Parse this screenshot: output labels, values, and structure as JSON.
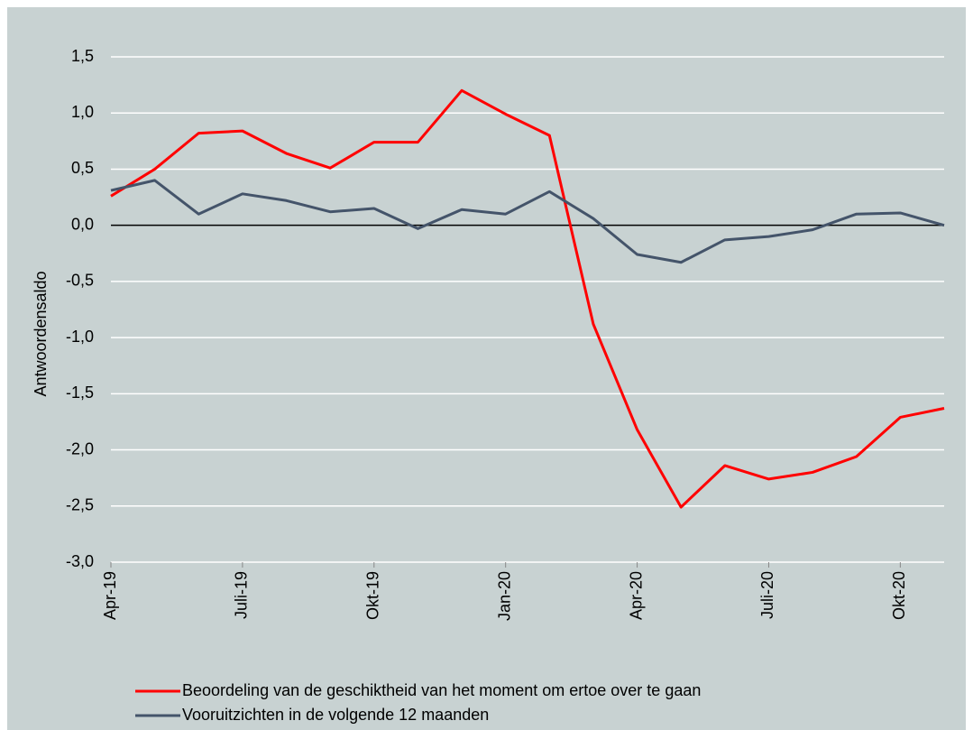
{
  "chart_data": {
    "type": "line",
    "y_label": "Antwoordensaldo",
    "categories": [
      "Apr-19",
      null,
      null,
      "Juli-19",
      null,
      null,
      "Okt-19",
      null,
      null,
      "Jan-20",
      null,
      null,
      "Apr-20",
      null,
      null,
      "Juli-20",
      null,
      null,
      "Okt-20",
      null
    ],
    "series": [
      {
        "name": "Beoordeling van de geschiktheid van het moment om ertoe over te gaan",
        "color": "#ff0000",
        "values": [
          0.26,
          0.5,
          0.82,
          0.84,
          0.64,
          0.51,
          0.74,
          0.74,
          1.2,
          0.99,
          0.8,
          -0.88,
          -1.82,
          -2.51,
          -2.14,
          -2.26,
          -2.2,
          -2.06,
          -1.71,
          -1.63
        ]
      },
      {
        "name": "Vooruitzichten in de volgende 12 maanden",
        "color": "#44546a",
        "values": [
          0.31,
          0.4,
          0.1,
          0.28,
          0.22,
          0.12,
          0.15,
          -0.03,
          0.14,
          0.1,
          0.3,
          0.06,
          -0.26,
          -0.33,
          -0.13,
          -0.1,
          -0.04,
          0.1,
          0.11,
          0
        ]
      }
    ],
    "ylim": [
      -3,
      1.5
    ],
    "yticks": [
      {
        "value": -3,
        "label": "-3,0"
      },
      {
        "value": -2.5,
        "label": "-2,5"
      },
      {
        "value": -2,
        "label": "-2,0"
      },
      {
        "value": -1.5,
        "label": "-1,5"
      },
      {
        "value": -1,
        "label": "-1,0"
      },
      {
        "value": -0.5,
        "label": "-0,5"
      },
      {
        "value": 0,
        "label": "0,0"
      },
      {
        "value": 0.5,
        "label": "0,5"
      },
      {
        "value": 1,
        "label": "1,0"
      },
      {
        "value": 1.5,
        "label": "1,5"
      }
    ],
    "grid": true,
    "legend": "bottom"
  }
}
